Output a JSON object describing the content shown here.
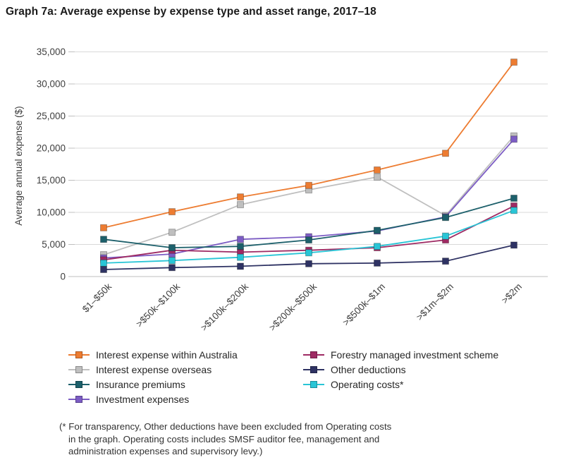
{
  "page": {
    "title": "Graph 7a: Average expense by expense type and asset range, 2017–18"
  },
  "chart_data": {
    "type": "line",
    "title": "Graph 7a: Average expense by expense type and asset range, 2017–18",
    "ylabel": "Average annual expense ($)",
    "xlabel": "",
    "ylim": [
      0,
      35000
    ],
    "ytick_step": 5000,
    "ytick_labels": [
      "0",
      "5,000",
      "10,000",
      "15,000",
      "20,000",
      "25,000",
      "30,000",
      "35,000"
    ],
    "grid": true,
    "legend_position": "bottom",
    "marker": "square",
    "categories": [
      "$1–$50k",
      ">$50k–$100k",
      ">$100k–$200k",
      ">$200k–$500k",
      ">$500k–$1m",
      ">$1m–$2m",
      ">$2m"
    ],
    "series": [
      {
        "name": "Interest expense within Australia",
        "color": "#ED7C31",
        "values": [
          7600,
          10100,
          12400,
          14200,
          16600,
          19200,
          33400
        ]
      },
      {
        "name": "Interest expense overseas",
        "color": "#BFBFBF",
        "values": [
          3400,
          6900,
          11200,
          13500,
          15500,
          9500,
          21900
        ]
      },
      {
        "name": "Insurance premiums",
        "color": "#1D606B",
        "values": [
          5800,
          4500,
          4700,
          5700,
          7200,
          9200,
          12200
        ]
      },
      {
        "name": "Investment expenses",
        "color": "#7C5CC4",
        "values": [
          2900,
          3500,
          5800,
          6200,
          7100,
          9300,
          21400
        ]
      },
      {
        "name": "Forestry managed investment scheme",
        "color": "#9E2A63",
        "values": [
          2600,
          4100,
          3800,
          4100,
          4500,
          5700,
          11000
        ]
      },
      {
        "name": "Other deductions",
        "color": "#2E3263",
        "values": [
          1100,
          1400,
          1600,
          2000,
          2100,
          2400,
          4900
        ]
      },
      {
        "name": "Operating costs*",
        "color": "#29C5D6",
        "values": [
          2100,
          2500,
          3000,
          3700,
          4700,
          6300,
          10300
        ]
      }
    ],
    "legend_columns": {
      "left": [
        0,
        1,
        2,
        3
      ],
      "right": [
        4,
        5,
        6
      ]
    }
  },
  "footnote": {
    "text": "(* For transparency, Other deductions have been excluded from Operating costs\nin the graph. Operating costs includes SMSF auditor fee, management and\nadministration expenses and supervisory levy.)"
  }
}
